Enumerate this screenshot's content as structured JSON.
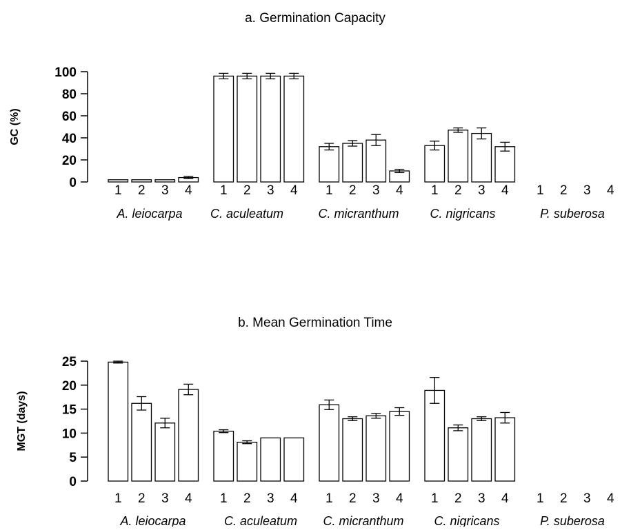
{
  "chart_data": [
    {
      "type": "bar",
      "title": "a. Germination Capacity",
      "ylabel": "GC (%)",
      "ylim": [
        0,
        100
      ],
      "yticks": [
        0,
        20,
        40,
        60,
        80,
        100
      ],
      "groups": [
        {
          "label": "A. leiocarpa",
          "categories": [
            "1",
            "2",
            "3",
            "4"
          ],
          "values": [
            2,
            2,
            2,
            4
          ],
          "errors": [
            0,
            0,
            0,
            1
          ]
        },
        {
          "label": "C. aculeatum",
          "categories": [
            "1",
            "2",
            "3",
            "4"
          ],
          "values": [
            96,
            96,
            96,
            96
          ],
          "errors": [
            2.5,
            2.5,
            2.5,
            2.5
          ]
        },
        {
          "label": "C. micranthum",
          "categories": [
            "1",
            "2",
            "3",
            "4"
          ],
          "values": [
            32,
            35,
            38,
            10
          ],
          "errors": [
            3,
            2.5,
            5,
            1.5
          ]
        },
        {
          "label": "C. nigricans",
          "categories": [
            "1",
            "2",
            "3",
            "4"
          ],
          "values": [
            33,
            47,
            44,
            32
          ],
          "errors": [
            4,
            2,
            5,
            4
          ]
        },
        {
          "label": "P. suberosa",
          "categories": [
            "1",
            "2",
            "3",
            "4"
          ],
          "values": [
            0,
            0,
            0,
            0
          ],
          "errors": [
            0,
            0,
            0,
            0
          ]
        }
      ]
    },
    {
      "type": "bar",
      "title": "b. Mean Germination Time",
      "ylabel": "MGT (days)",
      "ylim": [
        0,
        25
      ],
      "yticks": [
        0,
        5,
        10,
        15,
        20,
        25
      ],
      "groups": [
        {
          "label": "A. leiocarpa",
          "categories": [
            "1",
            "2",
            "3",
            "4"
          ],
          "values": [
            24.8,
            16.2,
            12.1,
            19.1
          ],
          "errors": [
            0.2,
            1.4,
            1.0,
            1.1
          ]
        },
        {
          "label": "C. aculeatum",
          "categories": [
            "1",
            "2",
            "3",
            "4"
          ],
          "values": [
            10.4,
            8.1,
            9.0,
            9.0
          ],
          "errors": [
            0.3,
            0.3,
            0,
            0
          ]
        },
        {
          "label": "C. micranthum",
          "categories": [
            "1",
            "2",
            "3",
            "4"
          ],
          "values": [
            15.9,
            13.0,
            13.6,
            14.5
          ],
          "errors": [
            1.0,
            0.4,
            0.5,
            0.8
          ]
        },
        {
          "label": "C. nigricans",
          "categories": [
            "1",
            "2",
            "3",
            "4"
          ],
          "values": [
            18.9,
            11.1,
            13.0,
            13.2
          ],
          "errors": [
            2.7,
            0.6,
            0.4,
            1.1
          ]
        },
        {
          "label": "P. suberosa",
          "categories": [
            "1",
            "2",
            "3",
            "4"
          ],
          "values": [
            0,
            0,
            0,
            0
          ],
          "errors": [
            0,
            0,
            0,
            0
          ]
        }
      ]
    }
  ]
}
